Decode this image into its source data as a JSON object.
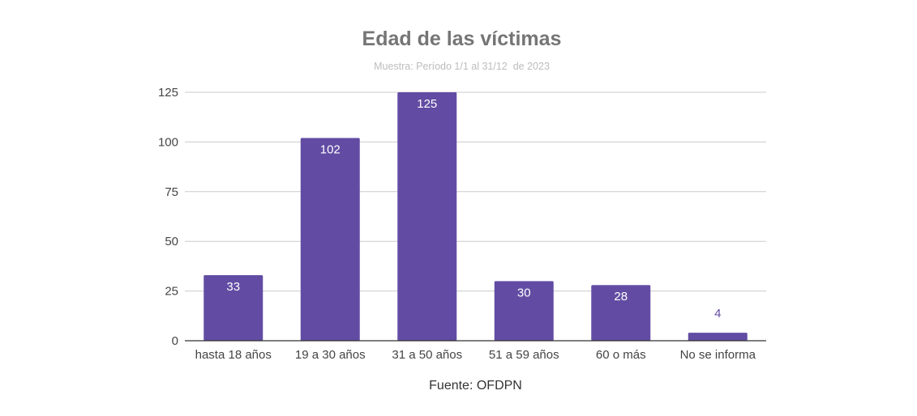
{
  "chart_data": {
    "type": "bar",
    "title": "Edad de las víctimas",
    "subtitle": "Muestra: Período 1/1 al 31/12  de 2023",
    "categories": [
      "hasta 18 años",
      "19 a 30 años",
      "31 a 50 años",
      "51 a 59 años",
      "60 o más",
      "No se informa"
    ],
    "values": [
      33,
      102,
      125,
      30,
      28,
      4
    ],
    "data_labels": [
      "33",
      "102",
      "125",
      "30",
      "28",
      "4"
    ],
    "yticks": [
      "0",
      "25",
      "50",
      "75",
      "100",
      "125"
    ],
    "ylim": [
      0,
      125
    ],
    "xlabel": "",
    "ylabel": "",
    "grid": true,
    "legend": "none",
    "bar_color": "#624ca3",
    "label_inside_color": "#ffffff",
    "label_outside_color": "#624ca3"
  },
  "source": "Fuente: OFDPN"
}
